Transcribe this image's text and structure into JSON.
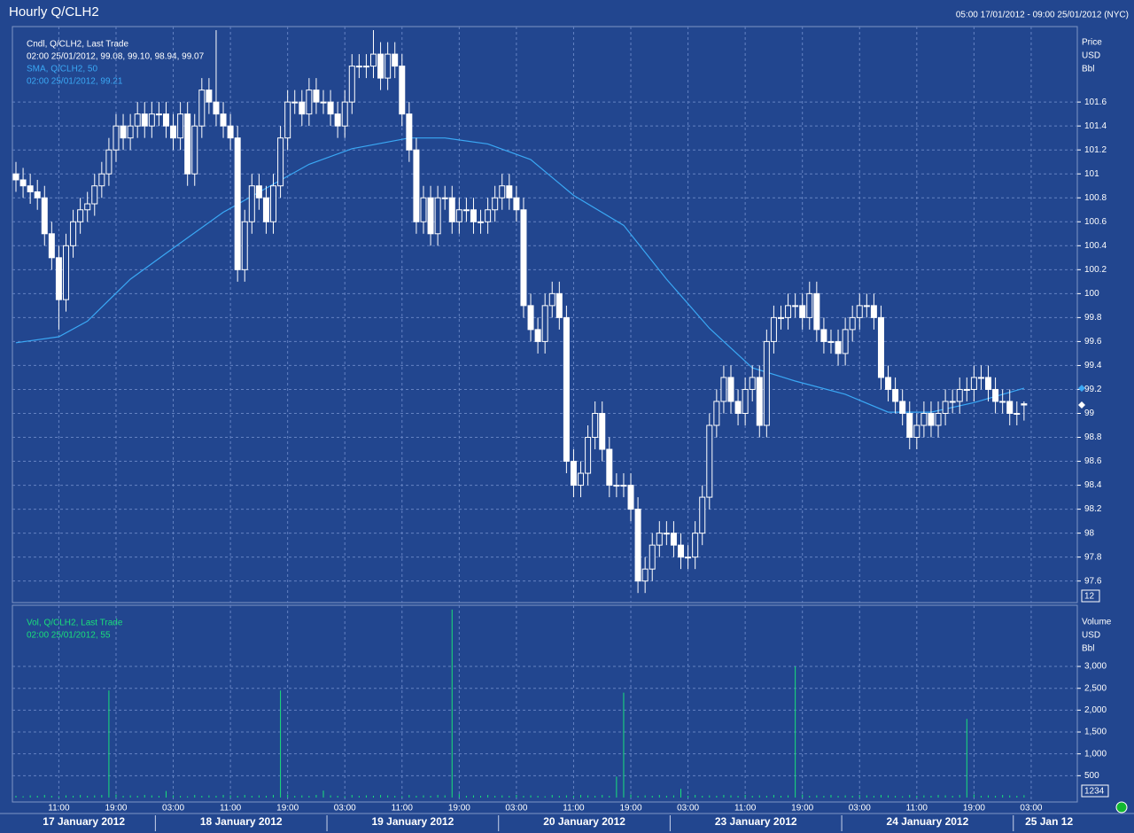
{
  "header": {
    "title": "Hourly Q/CLH2",
    "range": "05:00 17/01/2012 - 09:00 25/01/2012 (NYC)"
  },
  "chart_data": {
    "type": "candlestick",
    "legend": [
      "Cndl, Q/CLH2, Last Trade",
      "02:00 25/01/2012, 99.08, 99.10, 98.94, 99.07"
    ],
    "unit": [
      "Price",
      "USD",
      "Bbl"
    ],
    "color": "#ffffff",
    "grid": true,
    "price_box": "12",
    "candles": {
      "open": [
        101.0,
        100.95,
        100.9,
        100.85,
        100.8,
        100.5,
        100.3,
        99.95,
        100.4,
        100.6,
        100.7,
        100.75,
        100.9,
        101.0,
        101.2,
        101.4,
        101.3,
        101.4,
        101.5,
        101.4,
        101.5,
        101.5,
        101.4,
        101.3,
        101.5,
        101.0,
        101.4,
        101.7,
        101.6,
        101.5,
        101.4,
        101.3,
        100.2,
        100.6,
        100.9,
        100.8,
        100.6,
        100.9,
        101.3,
        101.6,
        101.6,
        101.5,
        101.7,
        101.6,
        101.6,
        101.5,
        101.4,
        101.6,
        101.9,
        101.9,
        101.9,
        102.0,
        101.8,
        102.0,
        101.9,
        101.5,
        101.2,
        100.6,
        100.8,
        100.5,
        100.8,
        100.8,
        100.6,
        100.7,
        100.7,
        100.6,
        100.6,
        100.7,
        100.8,
        100.9,
        100.8,
        100.7,
        99.9,
        99.7,
        99.6,
        99.9,
        100.0,
        99.8,
        98.6,
        98.4,
        98.5,
        98.8,
        99.0,
        98.7,
        98.4,
        98.4,
        98.4,
        98.2,
        97.6,
        97.7,
        97.9,
        98.0,
        98.0,
        97.9,
        97.8,
        97.8,
        98.0,
        98.3,
        98.9,
        99.1,
        99.3,
        99.1,
        99.0,
        99.2,
        99.3,
        98.9,
        99.6,
        99.8,
        99.8,
        99.9,
        99.9,
        99.8,
        100.0,
        99.7,
        99.6,
        99.6,
        99.5,
        99.7,
        99.8,
        99.9,
        99.9,
        99.8,
        99.3,
        99.2,
        99.1,
        99.0,
        98.8,
        98.9,
        99.0,
        98.9,
        99.0,
        99.1,
        99.1,
        99.2,
        99.2,
        99.3,
        99.3,
        99.2,
        99.1,
        99.1,
        99.0,
        99.08
      ],
      "high": [
        101.1,
        101.05,
        101.0,
        100.95,
        100.9,
        100.6,
        100.4,
        100.5,
        100.7,
        100.8,
        100.85,
        101.0,
        101.1,
        101.3,
        101.5,
        101.5,
        101.5,
        101.6,
        101.6,
        101.6,
        101.6,
        101.6,
        101.5,
        101.6,
        101.6,
        101.5,
        101.8,
        101.8,
        102.2,
        101.6,
        101.5,
        101.4,
        100.7,
        101.0,
        101.0,
        100.9,
        101.0,
        101.4,
        101.7,
        101.7,
        101.7,
        101.8,
        101.8,
        101.7,
        101.7,
        101.6,
        101.7,
        102.0,
        102.0,
        102.0,
        102.2,
        102.1,
        102.1,
        102.1,
        102.0,
        101.6,
        101.3,
        100.9,
        100.9,
        100.9,
        100.9,
        100.9,
        100.8,
        100.8,
        100.8,
        100.7,
        100.8,
        100.9,
        101.0,
        101.0,
        100.9,
        100.8,
        100.0,
        99.8,
        100.0,
        100.1,
        100.1,
        99.9,
        98.7,
        98.6,
        98.9,
        99.1,
        99.1,
        98.8,
        98.5,
        98.5,
        98.5,
        98.3,
        97.8,
        98.0,
        98.1,
        98.1,
        98.1,
        98.0,
        97.9,
        98.1,
        98.4,
        99.0,
        99.2,
        99.4,
        99.4,
        99.2,
        99.3,
        99.4,
        99.4,
        99.7,
        99.9,
        99.9,
        100.0,
        100.0,
        100.0,
        100.1,
        100.1,
        99.8,
        99.7,
        99.7,
        99.8,
        99.9,
        100.0,
        100.0,
        100.0,
        99.9,
        99.4,
        99.3,
        99.2,
        99.1,
        99.0,
        99.1,
        99.1,
        99.1,
        99.2,
        99.2,
        99.3,
        99.3,
        99.4,
        99.4,
        99.4,
        99.3,
        99.2,
        99.2,
        99.1,
        99.1
      ],
      "low": [
        100.85,
        100.8,
        100.75,
        100.7,
        100.4,
        100.2,
        99.7,
        99.85,
        100.3,
        100.5,
        100.6,
        100.65,
        100.8,
        100.9,
        101.1,
        101.2,
        101.2,
        101.3,
        101.3,
        101.3,
        101.4,
        101.3,
        101.2,
        101.2,
        100.9,
        100.9,
        101.3,
        101.5,
        101.4,
        101.3,
        101.2,
        100.1,
        100.1,
        100.5,
        100.7,
        100.5,
        100.5,
        100.8,
        101.2,
        101.5,
        101.4,
        101.4,
        101.5,
        101.5,
        101.4,
        101.3,
        101.3,
        101.5,
        101.8,
        101.8,
        101.8,
        101.7,
        101.7,
        101.8,
        101.4,
        101.1,
        100.5,
        100.5,
        100.4,
        100.4,
        100.7,
        100.5,
        100.5,
        100.6,
        100.5,
        100.5,
        100.5,
        100.6,
        100.7,
        100.7,
        100.6,
        99.8,
        99.6,
        99.5,
        99.5,
        99.8,
        99.7,
        98.5,
        98.3,
        98.3,
        98.4,
        98.7,
        98.6,
        98.3,
        98.3,
        98.3,
        98.1,
        97.5,
        97.5,
        97.6,
        97.8,
        97.9,
        97.8,
        97.7,
        97.7,
        97.7,
        97.9,
        98.2,
        98.8,
        99.0,
        99.0,
        98.9,
        98.9,
        99.1,
        98.8,
        98.8,
        99.5,
        99.7,
        99.7,
        99.8,
        99.7,
        99.7,
        99.6,
        99.5,
        99.5,
        99.4,
        99.4,
        99.6,
        99.7,
        99.8,
        99.7,
        99.2,
        99.1,
        99.0,
        98.9,
        98.7,
        98.7,
        98.8,
        98.8,
        98.8,
        98.9,
        99.0,
        99.0,
        99.1,
        99.1,
        99.2,
        99.1,
        99.0,
        99.0,
        98.9,
        98.9,
        98.94
      ],
      "close": [
        100.95,
        100.9,
        100.85,
        100.8,
        100.5,
        100.3,
        99.95,
        100.4,
        100.6,
        100.7,
        100.75,
        100.9,
        101.0,
        101.2,
        101.4,
        101.3,
        101.4,
        101.5,
        101.4,
        101.5,
        101.5,
        101.4,
        101.3,
        101.5,
        101.0,
        101.4,
        101.7,
        101.6,
        101.5,
        101.4,
        101.3,
        100.2,
        100.6,
        100.9,
        100.8,
        100.6,
        100.9,
        101.3,
        101.6,
        101.6,
        101.5,
        101.7,
        101.6,
        101.6,
        101.5,
        101.4,
        101.6,
        101.9,
        101.9,
        101.9,
        102.0,
        101.8,
        102.0,
        101.9,
        101.5,
        101.2,
        100.6,
        100.8,
        100.5,
        100.8,
        100.8,
        100.6,
        100.7,
        100.7,
        100.6,
        100.6,
        100.7,
        100.8,
        100.9,
        100.8,
        100.7,
        99.9,
        99.7,
        99.6,
        99.9,
        100.0,
        99.8,
        98.6,
        98.4,
        98.5,
        98.8,
        99.0,
        98.7,
        98.4,
        98.4,
        98.4,
        98.2,
        97.6,
        97.7,
        97.9,
        98.0,
        98.0,
        97.9,
        97.8,
        97.8,
        98.0,
        98.3,
        98.9,
        99.1,
        99.3,
        99.1,
        99.0,
        99.2,
        99.3,
        98.9,
        99.6,
        99.8,
        99.8,
        99.9,
        99.9,
        99.8,
        100.0,
        99.7,
        99.6,
        99.6,
        99.5,
        99.7,
        99.8,
        99.9,
        99.9,
        99.8,
        99.3,
        99.2,
        99.1,
        99.0,
        98.8,
        98.9,
        99.0,
        98.9,
        99.0,
        99.1,
        99.1,
        99.2,
        99.2,
        99.3,
        99.3,
        99.2,
        99.1,
        99.1,
        99.0,
        99.0,
        99.07
      ]
    },
    "ylim": [
      97.42,
      102.23
    ],
    "yticks": [
      97.6,
      97.8,
      98,
      98.2,
      98.4,
      98.6,
      98.8,
      99,
      99.2,
      99.4,
      99.6,
      99.8,
      100,
      100.2,
      100.4,
      100.6,
      100.8,
      101,
      101.2,
      101.4,
      101.6
    ],
    "xticks": [
      {
        "value": 6,
        "label": "11:00"
      },
      {
        "value": 14,
        "label": "19:00"
      },
      {
        "value": 22,
        "label": "03:00"
      },
      {
        "value": 30,
        "label": "11:00"
      },
      {
        "value": 38,
        "label": "19:00"
      },
      {
        "value": 46,
        "label": "03:00"
      },
      {
        "value": 54,
        "label": "11:00"
      },
      {
        "value": 62,
        "label": "19:00"
      },
      {
        "value": 70,
        "label": "03:00"
      },
      {
        "value": 78,
        "label": "11:00"
      },
      {
        "value": 86,
        "label": "19:00"
      },
      {
        "value": 94,
        "label": "03:00"
      },
      {
        "value": 102,
        "label": "11:00"
      },
      {
        "value": 110,
        "label": "19:00"
      },
      {
        "value": 118,
        "label": "03:00"
      },
      {
        "value": 126,
        "label": "11:00"
      },
      {
        "value": 134,
        "label": "19:00"
      },
      {
        "value": 142,
        "label": "03:00"
      }
    ],
    "days": [
      {
        "label": "17 January 2012",
        "start": 0
      },
      {
        "label": "18 January 2012",
        "start": 20
      },
      {
        "label": "19 January 2012",
        "start": 44
      },
      {
        "label": "20 January 2012",
        "start": 68
      },
      {
        "label": "23 January 2012",
        "start": 92
      },
      {
        "label": "24 January 2012",
        "start": 116
      },
      {
        "label": "25 Jan 12",
        "start": 140
      }
    ],
    "sma": {
      "legend": [
        "SMA, Q/CLH2,  50",
        "02:00 25/01/2012, 99.21"
      ],
      "color": "#3aa8f5",
      "x": [
        0,
        6,
        10,
        16,
        22,
        29,
        35,
        41,
        47,
        55,
        60,
        66,
        72,
        78,
        85,
        91,
        97,
        103,
        109,
        116,
        122,
        128,
        134,
        141
      ],
      "values": [
        99.59,
        99.64,
        99.77,
        100.12,
        100.38,
        100.68,
        100.88,
        101.08,
        101.21,
        101.3,
        101.3,
        101.25,
        101.12,
        100.82,
        100.57,
        100.12,
        99.71,
        99.38,
        99.27,
        99.16,
        99.01,
        99.01,
        99.09,
        99.21
      ]
    },
    "volume": {
      "type": "bar",
      "legend": [
        "Vol, Q/CLH2, Last Trade",
        "02:00 25/01/2012, 55"
      ],
      "unit": [
        "Volume",
        "USD",
        "Bbl"
      ],
      "color": "#19e07a",
      "box": "1234",
      "ylim": [
        0,
        4400
      ],
      "yticks": [
        500,
        {
          "value": 1000,
          "label": "1,000"
        },
        {
          "value": 1500,
          "label": "1,500"
        },
        {
          "value": 2000,
          "label": "2,000"
        },
        {
          "value": 2500,
          "label": "2,500"
        },
        {
          "value": 3000,
          "label": "3,000"
        }
      ],
      "values": [
        40,
        30,
        50,
        40,
        60,
        40,
        30,
        50,
        40,
        60,
        40,
        50,
        60,
        2450,
        70,
        40,
        50,
        40,
        60,
        50,
        40,
        150,
        50,
        40,
        30,
        60,
        40,
        50,
        40,
        60,
        50,
        40,
        60,
        40,
        50,
        40,
        60,
        2450,
        70,
        40,
        50,
        40,
        60,
        160,
        50,
        40,
        30,
        60,
        40,
        50,
        40,
        60,
        50,
        40,
        30,
        60,
        40,
        50,
        40,
        60,
        50,
        4300,
        80,
        40,
        50,
        40,
        60,
        40,
        50,
        40,
        60,
        40,
        50,
        40,
        30,
        60,
        40,
        50,
        40,
        60,
        50,
        40,
        60,
        40,
        480,
        2400,
        70,
        40,
        50,
        40,
        60,
        40,
        50,
        200,
        40,
        60,
        40,
        50,
        40,
        60,
        50,
        40,
        60,
        40,
        50,
        40,
        60,
        40,
        50,
        3000,
        70,
        40,
        50,
        40,
        60,
        40,
        50,
        40,
        60,
        50,
        40,
        60,
        50,
        40,
        30,
        60,
        40,
        50,
        40,
        60,
        50,
        40,
        60,
        1800,
        70,
        40,
        50,
        40,
        60,
        50,
        40,
        55
      ]
    }
  }
}
